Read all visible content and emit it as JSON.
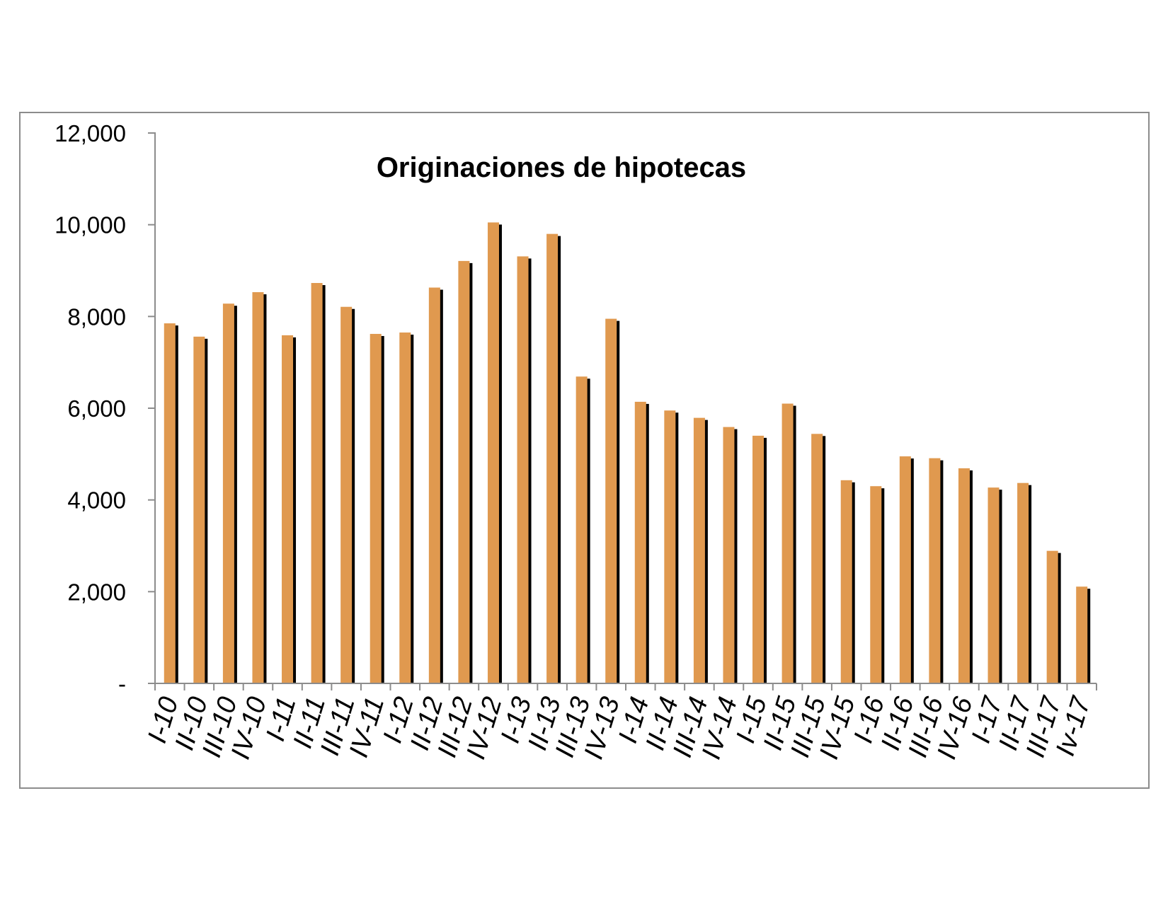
{
  "chart_data": {
    "type": "bar",
    "title": "Originaciones de hipotecas",
    "xlabel": "",
    "ylabel": "",
    "ylim": [
      0,
      12000
    ],
    "yticks": [
      0,
      2000,
      4000,
      6000,
      8000,
      10000,
      12000
    ],
    "ytick_labels": [
      "-",
      "2,000",
      "4,000",
      "6,000",
      "8,000",
      "10,000",
      "12,000"
    ],
    "grid": false,
    "legend": "none",
    "bar_color": "#E0994F",
    "shadow_color": "#000000",
    "categories": [
      "I-10",
      "II-10",
      "III-10",
      "IV-10",
      "I-11",
      "II-11",
      "III-11",
      "IV-11",
      "I-12",
      "II-12",
      "III-12",
      "IV-12",
      "I-13",
      "II-13",
      "III-13",
      "IV-13",
      "I-14",
      "II-14",
      "III-14",
      "IV-14",
      "I-15",
      "II-15",
      "III-15",
      "IV-15",
      "I-16",
      "II-16",
      "III-16",
      "IV-16",
      "I-17",
      "II-17",
      "III-17",
      "Iv-17"
    ],
    "values": [
      7850,
      7560,
      8280,
      8530,
      7590,
      8730,
      8210,
      7620,
      7650,
      8630,
      9210,
      10050,
      9310,
      9800,
      6690,
      7950,
      6140,
      5950,
      5790,
      5590,
      5400,
      6100,
      5440,
      4430,
      4300,
      4950,
      4910,
      4690,
      4270,
      4370,
      2890,
      2110
    ]
  }
}
